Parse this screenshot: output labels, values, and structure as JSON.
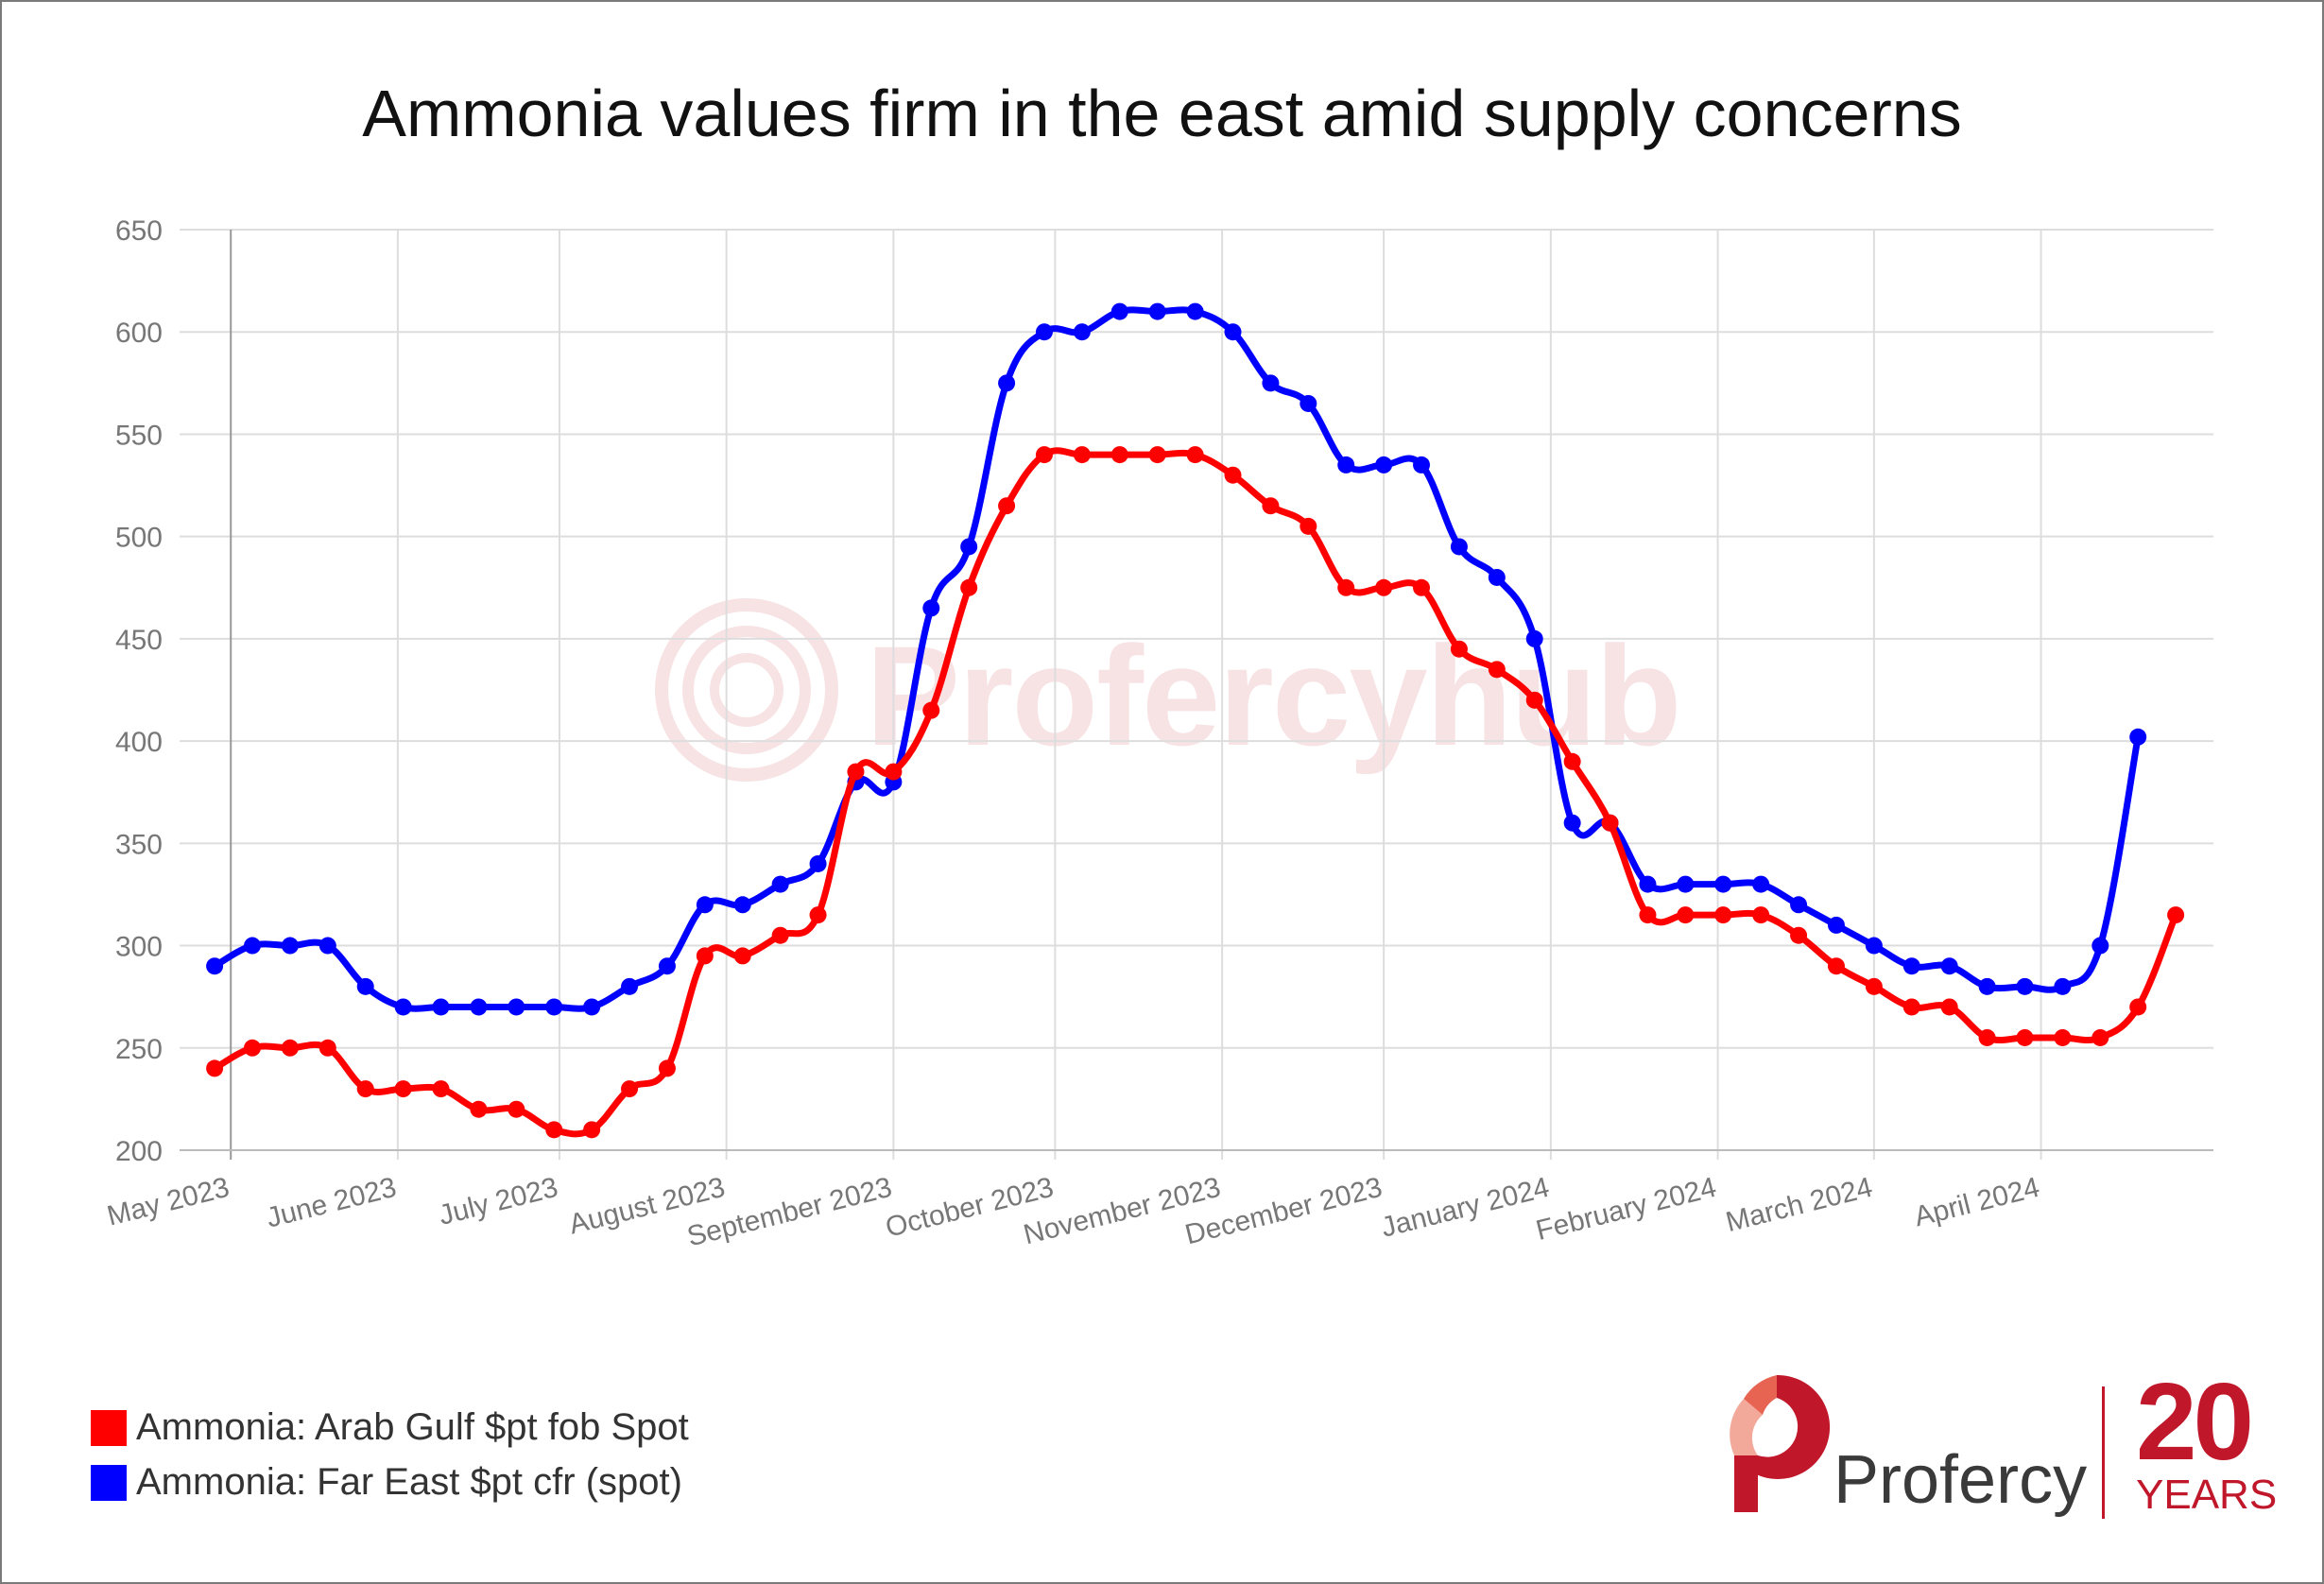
{
  "chart_data": {
    "type": "line",
    "title": "Ammonia values firm in the east amid supply concerns",
    "ylim": [
      200,
      650
    ],
    "yticks": [
      200,
      250,
      300,
      350,
      400,
      450,
      500,
      550,
      600,
      650
    ],
    "x_tick_labels": [
      "May 2023",
      "June 2023",
      "July 2023",
      "August 2023",
      "September 2023",
      "October 2023",
      "November 2023",
      "December 2023",
      "January 2024",
      "February 2024",
      "March 2024",
      "April 2024"
    ],
    "grid": true,
    "legend_position": "bottom-left",
    "x": [
      "2023-04-28",
      "2023-05-05",
      "2023-05-12",
      "2023-05-19",
      "2023-05-26",
      "2023-06-02",
      "2023-06-09",
      "2023-06-16",
      "2023-06-23",
      "2023-06-30",
      "2023-07-07",
      "2023-07-14",
      "2023-07-21",
      "2023-07-28",
      "2023-08-04",
      "2023-08-11",
      "2023-08-18",
      "2023-08-25",
      "2023-09-01",
      "2023-09-08",
      "2023-09-15",
      "2023-09-22",
      "2023-09-29",
      "2023-10-06",
      "2023-10-13",
      "2023-10-20",
      "2023-10-27",
      "2023-11-03",
      "2023-11-10",
      "2023-11-17",
      "2023-11-24",
      "2023-12-01",
      "2023-12-08",
      "2023-12-15",
      "2023-12-22",
      "2023-12-29",
      "2024-01-05",
      "2024-01-12",
      "2024-01-19",
      "2024-01-26",
      "2024-02-02",
      "2024-02-09",
      "2024-02-16",
      "2024-02-23",
      "2024-03-01",
      "2024-03-08",
      "2024-03-15",
      "2024-03-22",
      "2024-03-29",
      "2024-04-05",
      "2024-04-12",
      "2024-04-19",
      "2024-04-26",
      "2024-05-03"
    ],
    "series": [
      {
        "name": "Ammonia: Arab Gulf $pt fob Spot",
        "color": "#ff0000",
        "values": [
          240,
          250,
          250,
          250,
          230,
          230,
          230,
          220,
          220,
          210,
          210,
          230,
          240,
          295,
          295,
          305,
          315,
          385,
          385,
          415,
          475,
          515,
          540,
          540,
          540,
          540,
          540,
          530,
          515,
          505,
          475,
          475,
          475,
          445,
          435,
          420,
          390,
          360,
          315,
          315,
          315,
          315,
          305,
          290,
          280,
          270,
          270,
          255,
          255,
          255,
          255,
          270,
          315,
          null
        ]
      },
      {
        "name": "Ammonia: Far East $pt cfr (spot)",
        "color": "#0000ff",
        "values": [
          290,
          300,
          300,
          300,
          280,
          270,
          270,
          270,
          270,
          270,
          270,
          280,
          290,
          320,
          320,
          330,
          340,
          380,
          380,
          465,
          495,
          575,
          600,
          600,
          610,
          610,
          610,
          600,
          575,
          565,
          535,
          535,
          535,
          495,
          480,
          450,
          360,
          360,
          330,
          330,
          330,
          330,
          320,
          310,
          300,
          290,
          290,
          280,
          280,
          280,
          300,
          402,
          null,
          null
        ]
      }
    ]
  },
  "legend": {
    "item1": "Ammonia: Arab Gulf $pt fob Spot",
    "item2": "Ammonia: Far East $pt cfr (spot)"
  },
  "watermark": {
    "text": "Profercyhub"
  },
  "logo": {
    "name": "Profercy",
    "number": "20",
    "years": "YEARS"
  }
}
